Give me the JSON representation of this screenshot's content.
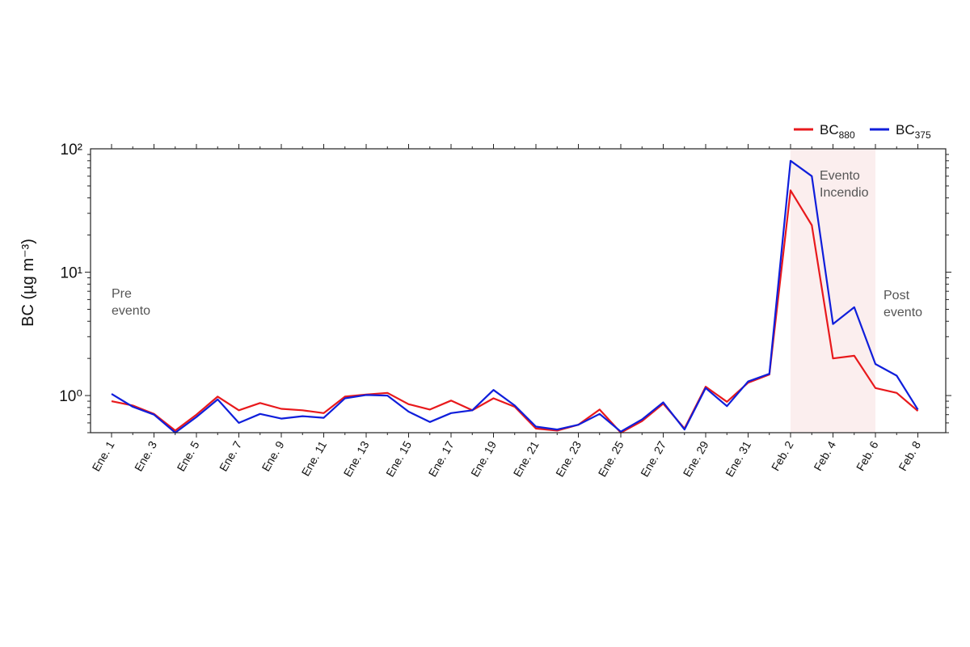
{
  "chart_data": {
    "type": "line",
    "ylabel": "BC (µg m⁻³)",
    "yscale": "log",
    "ylim": [
      0.5,
      100
    ],
    "yticks": [
      "10⁰",
      "10¹",
      "10²"
    ],
    "grid": false,
    "legend_position": "top-right",
    "legend_labels": [
      {
        "base": "BC",
        "sub": "880"
      },
      {
        "base": "BC",
        "sub": "375"
      }
    ],
    "x": [
      "Ene. 1",
      "Ene. 2",
      "Ene. 3",
      "Ene. 4",
      "Ene. 5",
      "Ene. 6",
      "Ene. 7",
      "Ene. 8",
      "Ene. 9",
      "Ene. 10",
      "Ene. 11",
      "Ene. 12",
      "Ene. 13",
      "Ene. 14",
      "Ene. 15",
      "Ene. 16",
      "Ene. 17",
      "Ene. 18",
      "Ene. 19",
      "Ene. 20",
      "Ene. 21",
      "Ene. 22",
      "Ene. 23",
      "Ene. 24",
      "Ene. 25",
      "Ene. 26",
      "Ene. 27",
      "Ene. 28",
      "Ene. 29",
      "Ene. 30",
      "Ene. 31",
      "Feb. 1",
      "Feb. 2",
      "Feb. 3",
      "Feb. 4",
      "Feb. 5",
      "Feb. 6",
      "Feb. 7",
      "Feb. 8"
    ],
    "xtick_labels": [
      "Ene. 1",
      "Ene. 3",
      "Ene. 5",
      "Ene. 7",
      "Ene. 9",
      "Ene. 11",
      "Ene. 13",
      "Ene. 15",
      "Ene. 17",
      "Ene. 19",
      "Ene. 21",
      "Ene. 23",
      "Ene. 25",
      "Ene. 27",
      "Ene. 29",
      "Ene. 31",
      "Feb. 2",
      "Feb. 4",
      "Feb. 6",
      "Feb. 8"
    ],
    "series": [
      {
        "name": "BC880",
        "color": "#e8191c",
        "values": [
          0.9,
          0.83,
          0.71,
          0.52,
          0.7,
          0.98,
          0.76,
          0.87,
          0.78,
          0.76,
          0.72,
          0.98,
          1.02,
          1.05,
          0.85,
          0.77,
          0.91,
          0.76,
          0.95,
          0.81,
          0.54,
          0.52,
          0.58,
          0.77,
          0.5,
          0.62,
          0.86,
          0.54,
          1.18,
          0.89,
          1.27,
          1.48,
          46,
          24,
          2.0,
          2.1,
          1.15,
          1.05,
          0.75
        ]
      },
      {
        "name": "BC375",
        "color": "#0f1edb",
        "values": [
          1.03,
          0.81,
          0.7,
          0.5,
          0.67,
          0.93,
          0.6,
          0.71,
          0.65,
          0.68,
          0.66,
          0.95,
          1.01,
          1.0,
          0.74,
          0.61,
          0.72,
          0.76,
          1.11,
          0.83,
          0.56,
          0.53,
          0.58,
          0.71,
          0.51,
          0.64,
          0.88,
          0.53,
          1.15,
          0.82,
          1.3,
          1.5,
          80,
          60,
          3.8,
          5.2,
          1.8,
          1.45,
          0.77
        ]
      }
    ],
    "shaded_region": {
      "from": "Feb. 2",
      "to": "Feb. 6",
      "color": "#fbeeee"
    },
    "annotations": [
      {
        "lines": [
          "Pre",
          "evento"
        ],
        "at": "Ene. 1"
      },
      {
        "lines": [
          "Evento",
          "Incendio"
        ],
        "at": "Feb. 2"
      },
      {
        "lines": [
          "Post",
          "evento"
        ],
        "at": "Feb. 6"
      }
    ]
  }
}
